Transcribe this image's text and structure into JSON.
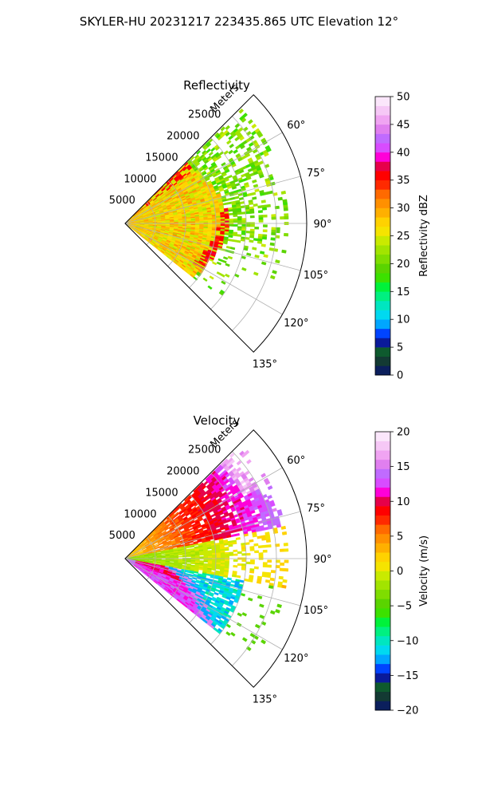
{
  "figure": {
    "suptitle": "SKYLER-HU  20231217  223435.865 UTC Elevation 12°"
  },
  "chart_data": [
    {
      "type": "heatmap",
      "projection": "polar-sector",
      "title": "Reflectivity",
      "range_label": "Meters",
      "range_ticks": [
        5000,
        10000,
        15000,
        20000,
        25000
      ],
      "range_tick_labels": [
        "5000",
        "10000",
        "15000",
        "20000",
        "25000"
      ],
      "rmax": 30000,
      "azimuth_ticks": [
        60,
        75,
        90,
        105,
        120,
        135
      ],
      "azimuth_tick_labels": [
        "60°",
        "75°",
        "90°",
        "105°",
        "120°",
        "135°"
      ],
      "azimuth_range": [
        45,
        135
      ],
      "grid": true,
      "colorbar": {
        "label": "Reflectivity dBZ",
        "vmin": 0,
        "vmax": 50,
        "ticks": [
          0,
          5,
          10,
          15,
          20,
          25,
          30,
          35,
          40,
          45,
          50
        ],
        "tick_labels": [
          "0",
          "5",
          "10",
          "15",
          "20",
          "25",
          "30",
          "35",
          "40",
          "45",
          "50"
        ],
        "colors": [
          "#0b1f5c",
          "#133a33",
          "#0e5a2e",
          "#0a1a9a",
          "#0044ff",
          "#00a6ff",
          "#00d9f0",
          "#00e6c0",
          "#00f080",
          "#00f23a",
          "#3ce100",
          "#5ad400",
          "#7fdd00",
          "#a2e400",
          "#c9ea00",
          "#f5e400",
          "#ffd200",
          "#ffb000",
          "#ff9000",
          "#ff6a00",
          "#ff2a00",
          "#ff0000",
          "#e6004a",
          "#ff00d8",
          "#d84cff",
          "#c06bff",
          "#e07fef",
          "#f0a4f2",
          "#f6c8f6",
          "#fbe6fb"
        ]
      }
    },
    {
      "type": "heatmap",
      "projection": "polar-sector",
      "title": "Velocity",
      "range_label": "Meters",
      "range_ticks": [
        5000,
        10000,
        15000,
        20000,
        25000
      ],
      "range_tick_labels": [
        "5000",
        "10000",
        "15000",
        "20000",
        "25000"
      ],
      "rmax": 30000,
      "azimuth_ticks": [
        60,
        75,
        90,
        105,
        120,
        135
      ],
      "azimuth_tick_labels": [
        "60°",
        "75°",
        "90°",
        "105°",
        "120°",
        "135°"
      ],
      "azimuth_range": [
        45,
        135
      ],
      "grid": true,
      "colorbar": {
        "label": "Velocity (m/s)",
        "vmin": -20,
        "vmax": 20,
        "ticks": [
          -20,
          -15,
          -10,
          -5,
          0,
          5,
          10,
          15,
          20
        ],
        "tick_labels": [
          "−20",
          "−15",
          "−10",
          "−5",
          "0",
          "5",
          "10",
          "15",
          "20"
        ],
        "colors": [
          "#0b1f5c",
          "#133a33",
          "#0e5a2e",
          "#0a1a9a",
          "#0044ff",
          "#00a6ff",
          "#00d9f0",
          "#00e6c0",
          "#00f080",
          "#00f23a",
          "#3ce100",
          "#5ad400",
          "#7fdd00",
          "#a2e400",
          "#c9ea00",
          "#f5e400",
          "#ffd200",
          "#ffb000",
          "#ff9000",
          "#ff6a00",
          "#ff2a00",
          "#ff0000",
          "#e6004a",
          "#ff00d8",
          "#d84cff",
          "#c06bff",
          "#e07fef",
          "#f0a4f2",
          "#f6c8f6",
          "#fbe6fb"
        ]
      }
    }
  ]
}
